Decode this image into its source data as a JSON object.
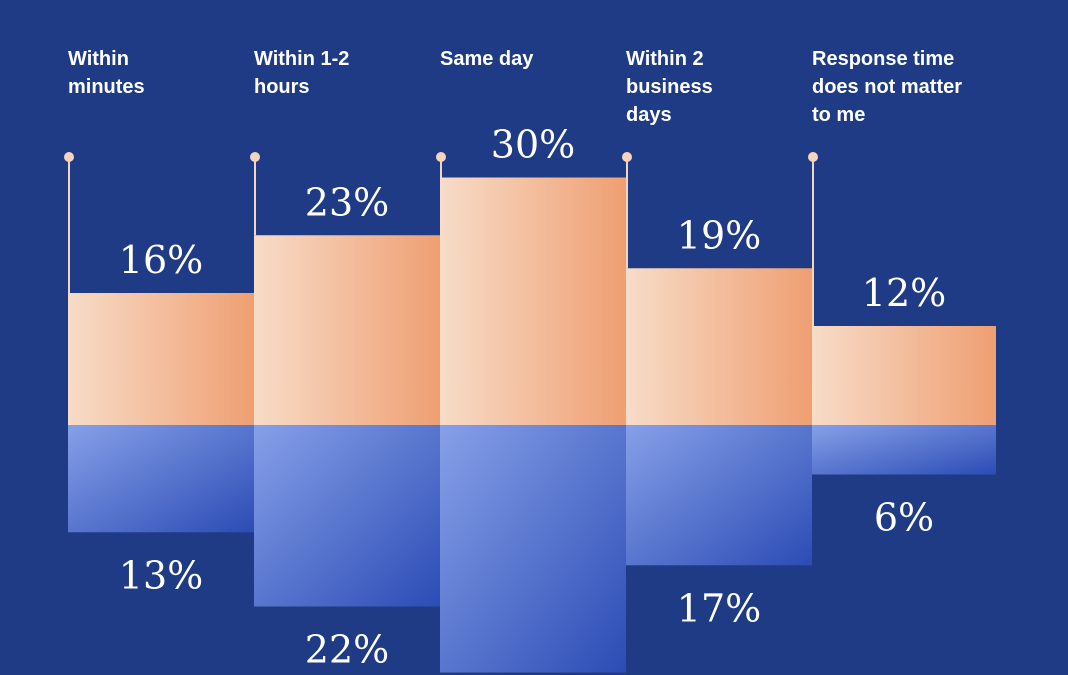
{
  "colors": {
    "background": "#1f3b85",
    "top_bar_light": "#f7dcc8",
    "top_bar_dark": "#ef9f72",
    "bottom_bar_light": "#7e98e2",
    "bottom_bar_dark": "#2f4fb7",
    "marker": "#f5d4be",
    "text": "#ffffff"
  },
  "chart_data": {
    "type": "bar",
    "title": "",
    "xlabel": "",
    "ylabel": "",
    "categories": [
      "Within\nminutes",
      "Within 1-2\nhours",
      "Same day",
      "Within 2\nbusiness\ndays",
      "Response time\ndoes not matter\nto me"
    ],
    "series": [
      {
        "values": [
          16,
          23,
          30,
          19,
          12
        ],
        "labels": [
          "16%",
          "23%",
          "30%",
          "19%",
          "12%"
        ]
      },
      {
        "values": [
          13,
          22,
          30,
          17,
          6
        ],
        "labels": [
          "13%",
          "22%",
          "",
          "17%",
          "6%"
        ]
      }
    ],
    "ylim": [
      -30,
      30
    ]
  }
}
